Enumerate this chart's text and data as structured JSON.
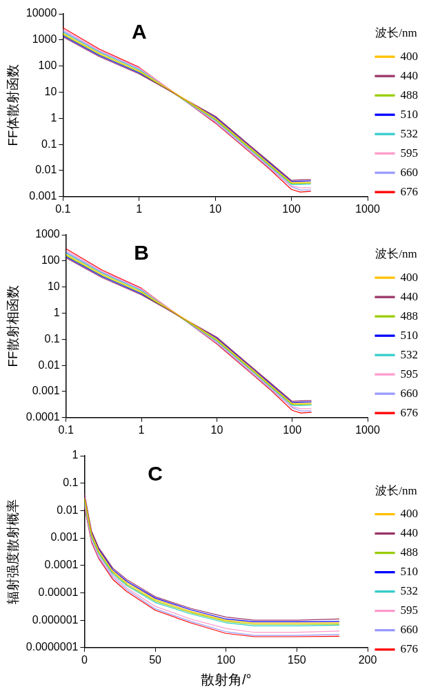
{
  "chart_data": [
    {
      "type": "line",
      "annotations": [
        "A"
      ],
      "ylabel": "FF体散射函数",
      "legend_title": "波长/nm",
      "legend": "right",
      "log": "xy",
      "grid": false,
      "xlim": [
        0.1,
        1000
      ],
      "xticks": [
        0.1,
        1,
        10,
        100,
        1000
      ],
      "ylim": [
        0.001,
        10000
      ],
      "yticks": [
        0.001,
        0.01,
        0.1,
        1,
        10,
        100,
        1000,
        10000
      ],
      "x": [
        0.1,
        0.3,
        1,
        10,
        30,
        50,
        100,
        130,
        180
      ],
      "series": [
        {
          "name": "400",
          "color": "#ffc000",
          "values": [
            1800,
            310,
            66,
            1.0,
            0.068,
            0.019,
            0.0035,
            0.0035,
            0.0036
          ]
        },
        {
          "name": "440",
          "color": "#993366",
          "values": [
            1300,
            230,
            50,
            1.2,
            0.08,
            0.023,
            0.0042,
            0.0044,
            0.0045
          ]
        },
        {
          "name": "488",
          "color": "#99cc00",
          "values": [
            1600,
            280,
            60,
            0.92,
            0.062,
            0.0175,
            0.0032,
            0.0032,
            0.0033
          ]
        },
        {
          "name": "510",
          "color": "#0000ff",
          "values": [
            1450,
            255,
            55,
            1.1,
            0.074,
            0.021,
            0.0038,
            0.0039,
            0.004
          ]
        },
        {
          "name": "532",
          "color": "#33cccc",
          "values": [
            2000,
            340,
            72,
            0.85,
            0.057,
            0.016,
            0.0029,
            0.0029,
            0.003
          ]
        },
        {
          "name": "595",
          "color": "#ff99cc",
          "values": [
            2500,
            400,
            85,
            0.78,
            0.052,
            0.0147,
            0.0026,
            0.0022,
            0.0022
          ]
        },
        {
          "name": "660",
          "color": "#9999ff",
          "values": [
            2200,
            370,
            78,
            0.72,
            0.048,
            0.0135,
            0.0024,
            0.0018,
            0.0018
          ]
        },
        {
          "name": "676",
          "color": "#ff0000",
          "values": [
            2900,
            450,
            90,
            0.66,
            0.044,
            0.0124,
            0.0019,
            0.0015,
            0.0016
          ]
        }
      ]
    },
    {
      "type": "line",
      "annotations": [
        "B"
      ],
      "ylabel": "FF散射相函数",
      "legend_title": "波长/nm",
      "legend": "right",
      "log": "xy",
      "grid": false,
      "xlim": [
        0.1,
        1000
      ],
      "xticks": [
        0.1,
        1,
        10,
        100,
        1000
      ],
      "ylim": [
        0.0001,
        1000
      ],
      "yticks": [
        0.0001,
        0.001,
        0.01,
        0.1,
        1,
        10,
        100,
        1000
      ],
      "x": [
        0.1,
        0.3,
        1,
        10,
        30,
        50,
        100,
        130,
        180
      ],
      "series": [
        {
          "name": "400",
          "color": "#ffc000",
          "values": [
            180,
            31,
            6.6,
            0.1,
            0.0068,
            0.0019,
            0.00035,
            0.00035,
            0.00036
          ]
        },
        {
          "name": "440",
          "color": "#993366",
          "values": [
            130,
            23,
            5,
            0.12,
            0.008,
            0.0023,
            0.00042,
            0.00044,
            0.00045
          ]
        },
        {
          "name": "488",
          "color": "#99cc00",
          "values": [
            160,
            28,
            6,
            0.092,
            0.0062,
            0.00175,
            0.00032,
            0.00032,
            0.00033
          ]
        },
        {
          "name": "510",
          "color": "#0000ff",
          "values": [
            145,
            25.5,
            5.5,
            0.11,
            0.0074,
            0.0021,
            0.00038,
            0.00039,
            0.0004
          ]
        },
        {
          "name": "532",
          "color": "#33cccc",
          "values": [
            200,
            34,
            7.2,
            0.085,
            0.0057,
            0.0016,
            0.00029,
            0.00029,
            0.0003
          ]
        },
        {
          "name": "595",
          "color": "#ff99cc",
          "values": [
            250,
            40,
            8.5,
            0.078,
            0.0052,
            0.00147,
            0.00026,
            0.00022,
            0.00022
          ]
        },
        {
          "name": "660",
          "color": "#9999ff",
          "values": [
            220,
            37,
            7.8,
            0.072,
            0.0048,
            0.00135,
            0.00024,
            0.00018,
            0.00018
          ]
        },
        {
          "name": "676",
          "color": "#ff0000",
          "values": [
            290,
            45,
            9,
            0.066,
            0.0044,
            0.00124,
            0.00019,
            0.00015,
            0.00016
          ]
        }
      ]
    },
    {
      "type": "line",
      "annotations": [
        "C"
      ],
      "xlabel": "散射角/°",
      "ylabel": "辐射强度散射概率",
      "legend_title": "波长/nm",
      "legend": "right",
      "log": "y",
      "grid": false,
      "xlim": [
        0,
        200
      ],
      "xticks": [
        0,
        50,
        100,
        150,
        200
      ],
      "ylim": [
        1e-07,
        1
      ],
      "yticks": [
        {
          "value": 1e-07,
          "label": "0.0000001"
        },
        {
          "value": 1e-06,
          "label": "0.000001"
        },
        {
          "value": 1e-05,
          "label": "0.00001"
        },
        0.0001,
        0.001,
        0.01,
        0.1,
        1
      ],
      "x": [
        0,
        5,
        10,
        20,
        30,
        50,
        75,
        100,
        120,
        150,
        180
      ],
      "series": [
        {
          "name": "400",
          "color": "#ffc000",
          "values": [
            0.03,
            0.0014,
            0.00035,
            6.2e-05,
            2.3e-05,
            5.7e-06,
            2.1e-06,
            1e-06,
            7.8e-07,
            7.8e-07,
            8e-07
          ]
        },
        {
          "name": "440",
          "color": "#993366",
          "values": [
            0.04,
            0.0018,
            0.00045,
            8e-05,
            3e-05,
            7.2e-06,
            2.7e-06,
            1.3e-06,
            1e-06,
            1e-06,
            1.1e-06
          ]
        },
        {
          "name": "488",
          "color": "#99cc00",
          "values": [
            0.026,
            0.0012,
            0.0003,
            5.5e-05,
            2e-05,
            5e-06,
            1.9e-06,
            9e-07,
            7e-07,
            7e-07,
            7.2e-07
          ]
        },
        {
          "name": "510",
          "color": "#0000ff",
          "values": [
            0.035,
            0.0016,
            0.0004,
            7e-05,
            2.6e-05,
            6.4e-06,
            2.4e-06,
            1.1e-06,
            8.8e-07,
            8.8e-07,
            9e-07
          ]
        },
        {
          "name": "532",
          "color": "#33cccc",
          "values": [
            0.022,
            0.00105,
            0.00027,
            4.8e-05,
            1.8e-05,
            4.4e-06,
            1.7e-06,
            8e-07,
            6.2e-07,
            6.2e-07,
            6.6e-07
          ]
        },
        {
          "name": "595",
          "color": "#ff99cc",
          "values": [
            0.019,
            0.0009,
            0.00023,
            4.2e-05,
            1.5e-05,
            3.2e-06,
            1.1e-06,
            5e-07,
            3.6e-07,
            3.6e-07,
            4e-07
          ]
        },
        {
          "name": "660",
          "color": "#9999ff",
          "values": [
            0.016,
            0.0008,
            0.0002,
            3.6e-05,
            1.3e-05,
            2.6e-06,
            9e-07,
            3.8e-07,
            2.8e-07,
            2.8e-07,
            3e-07
          ]
        },
        {
          "name": "676",
          "color": "#ff0000",
          "values": [
            0.014,
            0.0007,
            0.00018,
            3.1e-05,
            1.1e-05,
            2.3e-06,
            8e-07,
            3.3e-07,
            2.5e-07,
            2.5e-07,
            2.6e-07
          ]
        }
      ]
    }
  ]
}
